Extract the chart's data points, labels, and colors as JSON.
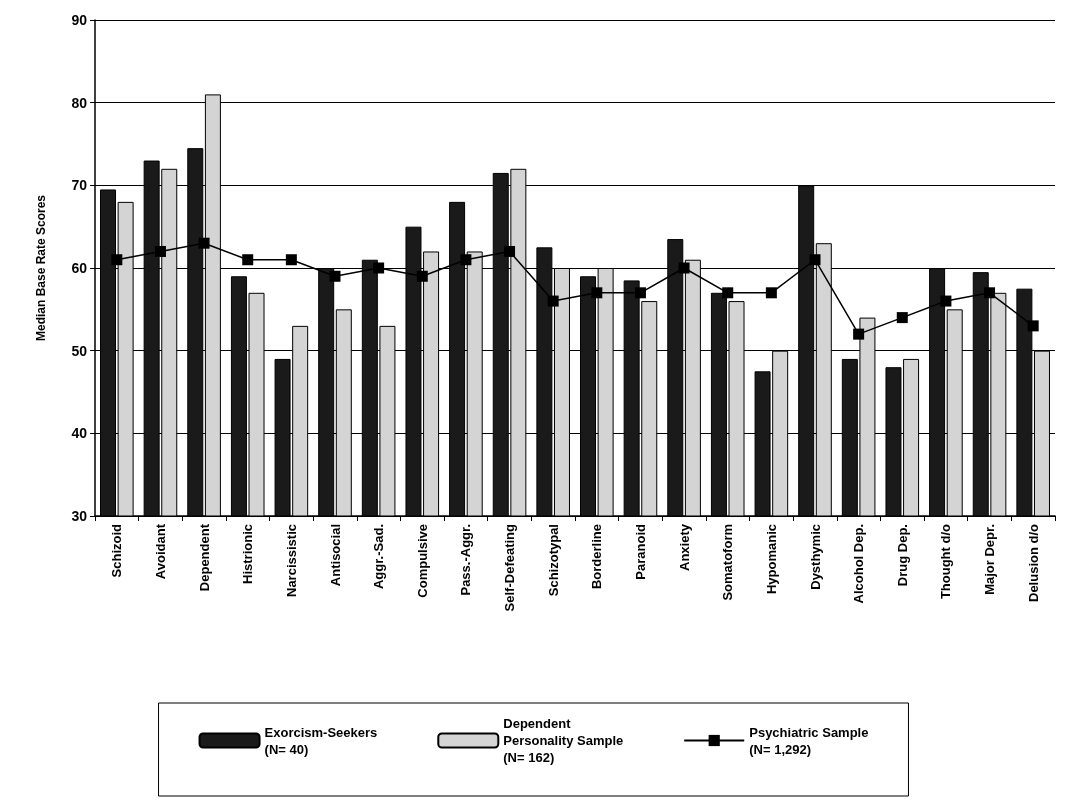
{
  "chart_data": {
    "type": "bar",
    "ylabel": "Median Base Rate Scores",
    "categories": [
      "Schizoid",
      "Avoidant",
      "Dependent",
      "Histrionic",
      "Narcissistic",
      "Antisocial",
      "Aggr.-Sad.",
      "Compulsive",
      "Pass.-Aggr.",
      "Self-Defeating",
      "Schizotypal",
      "Borderline",
      "Paranoid",
      "Anxiety",
      "Somatoform",
      "Hypomanic",
      "Dysthymic",
      "Alcohol Dep.",
      "Drug Dep.",
      "Thought d/o",
      "Major Depr.",
      "Delusion d/o"
    ],
    "series": [
      {
        "name": "Exorcism-Seekers\n(N= 40)",
        "color": "#1a1a1a",
        "values": [
          69.5,
          73,
          74.5,
          59,
          49,
          60,
          61,
          65,
          68,
          71.5,
          62.5,
          59,
          58.5,
          63.5,
          57,
          47.5,
          70,
          49,
          48,
          60,
          59.5,
          57.5
        ]
      },
      {
        "name": "Dependent\nPersonality Sample\n(N= 162)",
        "color": "#d4d4d4",
        "values": [
          68,
          72,
          81,
          57,
          53,
          55,
          53,
          62,
          62,
          72,
          60,
          60,
          56,
          61,
          56,
          50,
          63,
          54,
          49,
          55,
          57,
          50
        ]
      },
      {
        "name": "Psychiatric Sample\n(N= 1,292)",
        "type": "line",
        "color": "#000000",
        "marker": "square",
        "values": [
          61,
          62,
          63,
          61,
          61,
          59,
          60,
          59,
          61,
          62,
          56,
          57,
          57,
          60,
          57,
          57,
          61,
          52,
          54,
          56,
          57,
          53
        ]
      }
    ],
    "ylim": [
      30,
      90
    ],
    "yticks": [
      30,
      40,
      50,
      60,
      70,
      80,
      90
    ],
    "grid": "y",
    "legend": "bottom"
  }
}
